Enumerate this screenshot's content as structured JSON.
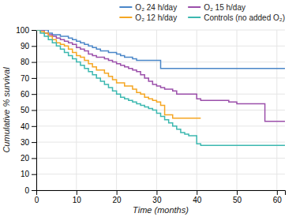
{
  "chart_data": {
    "type": "step",
    "xlabel": "Time (months)",
    "ylabel": "Cumulative % survival",
    "xlim": [
      0,
      62
    ],
    "ylim": [
      0,
      100
    ],
    "xticks": [
      0,
      10,
      20,
      30,
      40,
      50,
      60
    ],
    "yticks": [
      0,
      10,
      20,
      30,
      40,
      50,
      60,
      70,
      80,
      90,
      100
    ],
    "grid": true,
    "legend": "upper right",
    "series": [
      {
        "name": "O₂ 24 h/day",
        "color": "#4a86c8",
        "x": [
          0,
          3,
          4,
          5,
          6,
          7,
          8,
          9,
          10,
          11,
          12,
          13,
          14,
          15,
          16,
          17,
          18,
          19,
          20,
          21,
          22,
          23,
          24,
          25,
          30,
          31,
          62
        ],
        "values": [
          100,
          98,
          97,
          97,
          96,
          96,
          95,
          94,
          93,
          92,
          91,
          90,
          89,
          88,
          87,
          87,
          86,
          86,
          85,
          84,
          83,
          83,
          82,
          81,
          81,
          76,
          76
        ]
      },
      {
        "name": "O₂ 15 h/day",
        "color": "#9b4faa",
        "x": [
          0,
          2,
          3,
          4,
          5,
          6,
          7,
          8,
          9,
          10,
          11,
          12,
          13,
          14,
          15,
          17,
          18,
          19,
          20,
          21,
          22,
          23,
          24,
          25,
          26,
          27,
          28,
          29,
          30,
          31,
          32,
          34,
          35,
          40,
          41,
          48,
          50,
          51,
          55,
          57,
          62
        ],
        "values": [
          100,
          98,
          97,
          96,
          95,
          94,
          93,
          92,
          91,
          89,
          88,
          87,
          85,
          84,
          83,
          82,
          81,
          80,
          79,
          78,
          77,
          76,
          75,
          74,
          72,
          70,
          68,
          66,
          65,
          64,
          63,
          62,
          60,
          57,
          56,
          55,
          54,
          54,
          54,
          43,
          43
        ]
      },
      {
        "name": "O₂ 12 h/day",
        "color": "#f5a623",
        "x": [
          0,
          1,
          2,
          3,
          4,
          5,
          6,
          7,
          8,
          9,
          10,
          11,
          12,
          13,
          14,
          15,
          17,
          18,
          19,
          20,
          22,
          24,
          25,
          26,
          27,
          28,
          29,
          30,
          31,
          32,
          34,
          41
        ],
        "values": [
          100,
          99,
          98,
          96,
          94,
          92,
          91,
          90,
          88,
          86,
          84,
          83,
          81,
          79,
          77,
          75,
          73,
          71,
          69,
          67,
          65,
          63,
          61,
          60,
          58,
          57,
          56,
          55,
          53,
          47,
          45,
          45
        ]
      },
      {
        "name": "Controls (no added O₂)",
        "color": "#3cb8b0",
        "x": [
          0,
          1,
          2,
          3,
          4,
          5,
          6,
          7,
          8,
          9,
          10,
          11,
          12,
          13,
          14,
          15,
          16,
          17,
          18,
          19,
          20,
          21,
          22,
          23,
          24,
          25,
          26,
          27,
          28,
          29,
          30,
          31,
          32,
          33,
          34,
          35,
          36,
          37,
          38,
          40,
          41,
          62
        ],
        "values": [
          100,
          98,
          96,
          94,
          92,
          90,
          88,
          86,
          84,
          82,
          80,
          78,
          76,
          74,
          72,
          70,
          68,
          66,
          64,
          62,
          60,
          58,
          57,
          56,
          55,
          54,
          53,
          52,
          51,
          50,
          48,
          46,
          44,
          42,
          40,
          38,
          36,
          35,
          34,
          29,
          28,
          28
        ]
      }
    ]
  }
}
